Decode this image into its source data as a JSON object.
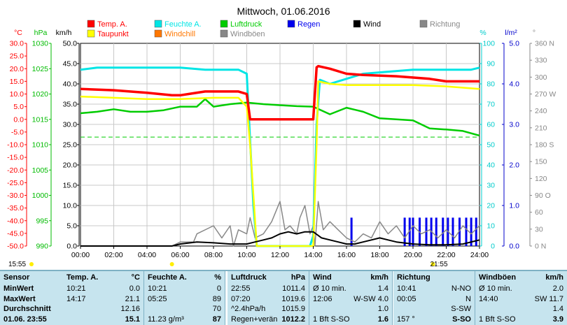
{
  "chart_data": {
    "type": "line",
    "title": "Mittwoch, 01.06.2016",
    "x_ticks": [
      "00:00",
      "02:00",
      "04:00",
      "06:00",
      "08:00",
      "10:00",
      "12:00",
      "14:00",
      "16:00",
      "18:00",
      "20:00",
      "22:00",
      "24:00"
    ],
    "x_range_hours": [
      0,
      24
    ],
    "grid": true,
    "axes": {
      "temp": {
        "label": "°C",
        "color": "#ff0000",
        "range": [
          -50,
          30
        ],
        "ticks": [
          "30.0",
          "25.0",
          "20.0",
          "15.0",
          "10.0",
          "5.0",
          "0.0",
          "-5.0",
          "-10.0",
          "-15.0",
          "-20.0",
          "-25.0",
          "-30.0",
          "-35.0",
          "-40.0",
          "-45.0",
          "-50.0"
        ]
      },
      "press": {
        "label": "hPa",
        "color": "#00bb00",
        "range": [
          990,
          1030
        ],
        "ticks": [
          "1030",
          "1025",
          "1020",
          "1015",
          "1010",
          "1005",
          "1000",
          "995",
          "990"
        ]
      },
      "wind": {
        "label": "km/h",
        "color": "#000000",
        "range": [
          0,
          50
        ],
        "ticks": [
          "50.0",
          "45.0",
          "40.0",
          "35.0",
          "30.0",
          "25.0",
          "20.0",
          "15.0",
          "10.0",
          "5.0",
          "0.0"
        ]
      },
      "hum": {
        "label": "%",
        "color": "#00cccc",
        "range": [
          0,
          100
        ],
        "ticks": [
          "100",
          "90",
          "80",
          "70",
          "60",
          "50",
          "40",
          "30",
          "20",
          "10",
          "0"
        ]
      },
      "rain": {
        "label": "l/m²",
        "color": "#0000cc",
        "range": [
          0,
          5
        ],
        "ticks": [
          "5.0",
          "4.0",
          "3.0",
          "2.0",
          "1.0",
          "0.0"
        ]
      },
      "dir": {
        "label": "°",
        "color": "#888888",
        "range": [
          0,
          360
        ],
        "ticks": [
          "360 N",
          "330",
          "300",
          "270 W",
          "240",
          "210",
          "180 S",
          "150",
          "120",
          "90 O",
          "60",
          "30",
          "0 N"
        ]
      }
    },
    "legend": [
      {
        "name": "Temp. A.",
        "color": "#ff0000"
      },
      {
        "name": "Feuchte A.",
        "color": "#00e5e5"
      },
      {
        "name": "Luftdruck",
        "color": "#00cc00"
      },
      {
        "name": "Regen",
        "color": "#0000ee"
      },
      {
        "name": "Wind",
        "color": "#000000"
      },
      {
        "name": "Richtung",
        "color": "#888888"
      },
      {
        "name": "Taupunkt",
        "color": "#ffff00"
      },
      {
        "name": "Windchill",
        "color": "#ff7700"
      },
      {
        "name": "Windböen",
        "color": "#888888"
      }
    ],
    "series": [
      {
        "name": "Temp. A.",
        "axis": "temp",
        "color": "#ff0000",
        "x": [
          0,
          2,
          4,
          5.5,
          6,
          6.5,
          7.5,
          9.5,
          10,
          10.2,
          14,
          14.2,
          14.3,
          15,
          16,
          17,
          19,
          21,
          22,
          24
        ],
        "y": [
          12,
          11.5,
          10.5,
          9.5,
          9.5,
          10,
          11,
          11,
          10,
          0,
          0,
          20.5,
          21,
          20,
          18,
          17.5,
          17,
          16,
          15,
          15
        ]
      },
      {
        "name": "Taupunkt",
        "axis": "temp",
        "color": "#ffff00",
        "x": [
          0,
          2,
          4,
          6,
          8,
          9.5,
          10,
          10.2,
          10.6,
          14,
          14.2,
          14.3,
          15,
          16,
          18,
          20,
          22,
          24
        ],
        "y": [
          9,
          8.5,
          8,
          8,
          8.5,
          8.5,
          5,
          -10,
          -50,
          -50,
          -10,
          15,
          14,
          13.5,
          13.5,
          13.5,
          13,
          12
        ]
      },
      {
        "name": "Feuchte A.",
        "axis": "hum",
        "color": "#00e5e5",
        "x": [
          0,
          1,
          4,
          6,
          7.5,
          9.5,
          10,
          10.4,
          10.6,
          13.8,
          14,
          14.2,
          14.4,
          15,
          15.8,
          17,
          20,
          22,
          23.5,
          24
        ],
        "y": [
          87,
          88,
          88,
          88,
          87,
          87,
          85,
          20,
          0,
          0,
          5,
          60,
          82,
          80,
          82,
          85,
          87,
          87,
          87,
          88
        ]
      },
      {
        "name": "Luftdruck",
        "axis": "press",
        "color": "#00cc00",
        "x": [
          0,
          1,
          2,
          3,
          4,
          5,
          6,
          7,
          7.5,
          8,
          9,
          10,
          11,
          12,
          13,
          14,
          15,
          16,
          17,
          18,
          19,
          20,
          21,
          22,
          23,
          24
        ],
        "y": [
          1016.2,
          1016.5,
          1017,
          1016.5,
          1016.5,
          1016.8,
          1017.5,
          1017.5,
          1019,
          1017.5,
          1018,
          1018.3,
          1018,
          1017.8,
          1017.6,
          1017.5,
          1016,
          1017.3,
          1016.5,
          1015.2,
          1015,
          1014.8,
          1013.2,
          1013,
          1012.7,
          1011.8
        ]
      },
      {
        "name": "Wind",
        "axis": "wind",
        "color": "#000000",
        "x": [
          0,
          5.5,
          6,
          7,
          8,
          9,
          10,
          10.5,
          11,
          11.5,
          12,
          12.5,
          13,
          13.5,
          14,
          14.5,
          15,
          15.5,
          16,
          16.5,
          17,
          17.5,
          18,
          18.5,
          19,
          20,
          21,
          22,
          23,
          24
        ],
        "y": [
          0,
          0,
          0.5,
          1,
          0.8,
          0.5,
          0.5,
          1,
          1.5,
          2,
          3,
          3.5,
          3,
          3.5,
          3.5,
          2,
          1.5,
          1,
          0.5,
          0.5,
          1,
          1.5,
          2,
          1.5,
          1,
          0.5,
          0.3,
          0.3,
          0.5,
          1.5
        ]
      },
      {
        "name": "Windböen",
        "axis": "wind",
        "color": "#888888",
        "x": [
          0,
          5.5,
          6,
          6.8,
          7,
          8,
          8.5,
          9,
          9.2,
          9.5,
          10,
          10.2,
          10.5,
          11,
          11.5,
          12,
          12.3,
          12.6,
          13,
          13.2,
          13.5,
          13.8,
          14,
          14.1,
          14.3,
          14.6,
          15,
          15.5,
          16,
          16.5,
          17,
          17.5,
          18,
          18.5,
          19,
          19.5,
          20,
          20.5,
          21,
          21.5,
          22,
          22.5,
          23,
          23.5,
          24
        ],
        "y": [
          0,
          0,
          1,
          1,
          3,
          5,
          2,
          5,
          0,
          4,
          3,
          7,
          2,
          3,
          6,
          11,
          4,
          5,
          3,
          7,
          10,
          3,
          5,
          0,
          11,
          4,
          6,
          4,
          2,
          1,
          3,
          2,
          6,
          3,
          5,
          2,
          5,
          3,
          4,
          2,
          4,
          2,
          5,
          3,
          5
        ]
      }
    ],
    "rain_bars_mm": {
      "x": [
        16.3,
        19.5,
        19.8,
        20.0,
        20.4,
        20.8,
        21.1,
        21.4,
        21.8,
        22.1,
        22.4,
        22.8,
        23.2,
        23.5,
        23.8
      ],
      "y": [
        0.7,
        0.7,
        0.7,
        0.7,
        0.7,
        0.7,
        0.7,
        0.7,
        0.7,
        0.7,
        0.7,
        0.7,
        0.7,
        0.7,
        0.7
      ]
    },
    "pressure_trend_line_hpa": 1011.5
  },
  "timestamps": {
    "left": "15:55",
    "right": "21:55"
  },
  "table": {
    "labels": {
      "header": "Sensor",
      "min": "MinWert",
      "max": "MaxWert",
      "avg": "Durchschnitt",
      "cur": "01.06. 23:55"
    },
    "panes": [
      {
        "id": "temp",
        "title": "Temp. A.",
        "unit": "°C",
        "rows": [
          [
            "10:21",
            "0.0"
          ],
          [
            "14:17",
            "21.1"
          ],
          [
            "",
            "12.16"
          ],
          [
            "",
            "15.1"
          ]
        ]
      },
      {
        "id": "hum",
        "title": "Feuchte A.",
        "unit": "%",
        "rows": [
          [
            "10:21",
            "0"
          ],
          [
            "05:25",
            "89"
          ],
          [
            "",
            "70"
          ],
          [
            "11.23 g/m³",
            "87"
          ]
        ]
      },
      {
        "id": "press",
        "title": "Luftdruck",
        "unit": "hPa",
        "rows": [
          [
            "22:55",
            "1011.4"
          ],
          [
            "07:20",
            "1019.6"
          ],
          [
            "^2.4hPa/h",
            "1015.9"
          ],
          [
            "Regen+verän",
            "1012.2"
          ]
        ]
      },
      {
        "id": "wind",
        "title": "Wind",
        "unit": "km/h",
        "rows": [
          [
            "Ø 10 min.",
            "1.4"
          ],
          [
            "12:06",
            "W-SW 4.0"
          ],
          [
            "",
            "1.0"
          ],
          [
            "1 Bft S-SO",
            "1.6"
          ]
        ]
      },
      {
        "id": "dir",
        "title": "Richtung",
        "unit": "",
        "rows": [
          [
            "10:41",
            "N-NO"
          ],
          [
            "00:05",
            "N"
          ],
          [
            "",
            "S-SW"
          ],
          [
            "157 °",
            "S-SO"
          ]
        ]
      },
      {
        "id": "gust",
        "title": "Windböen",
        "unit": "km/h",
        "rows": [
          [
            "Ø 10 min.",
            "2.0"
          ],
          [
            "14:40",
            "SW 11.7"
          ],
          [
            "",
            "1.4"
          ],
          [
            "1 Bft S-SO",
            "3.9"
          ]
        ]
      }
    ]
  }
}
